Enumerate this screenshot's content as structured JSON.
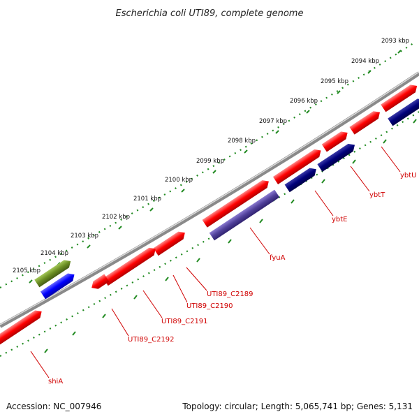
{
  "title": "Escherichia coli UTI89, complete genome",
  "accession": "Accession: NC_007946",
  "stats": "Topology: circular; Length: 5,065,741 bp; Genes: 5,131",
  "colors": {
    "forward_gene": "#ff0000",
    "reverse_gene": "#00007a",
    "fyuA_gene": "#50409a",
    "blue_gene": "#0000ff",
    "olive_gene": "#6b8e23",
    "backbone": "#888888",
    "ticks": "#228b22",
    "label": "#d00000"
  },
  "ticks": [
    {
      "label": "2093 kbp"
    },
    {
      "label": "2094 kbp"
    },
    {
      "label": "2095 kbp"
    },
    {
      "label": "2096 kbp"
    },
    {
      "label": "2097 kbp"
    },
    {
      "label": "2098 kbp"
    },
    {
      "label": "2099 kbp"
    },
    {
      "label": "2100 kbp"
    },
    {
      "label": "2101 kbp"
    },
    {
      "label": "2102 kbp"
    },
    {
      "label": "2103 kbp"
    },
    {
      "label": "2104 kbp"
    },
    {
      "label": "2105 kbp"
    }
  ],
  "gene_labels": [
    {
      "name": "ybtU"
    },
    {
      "name": "ybtT"
    },
    {
      "name": "ybtE"
    },
    {
      "name": "fyuA"
    },
    {
      "name": "UTI89_C2189"
    },
    {
      "name": "UTI89_C2190"
    },
    {
      "name": "UTI89_C2191"
    },
    {
      "name": "UTI89_C2192"
    },
    {
      "name": "shiA"
    }
  ]
}
